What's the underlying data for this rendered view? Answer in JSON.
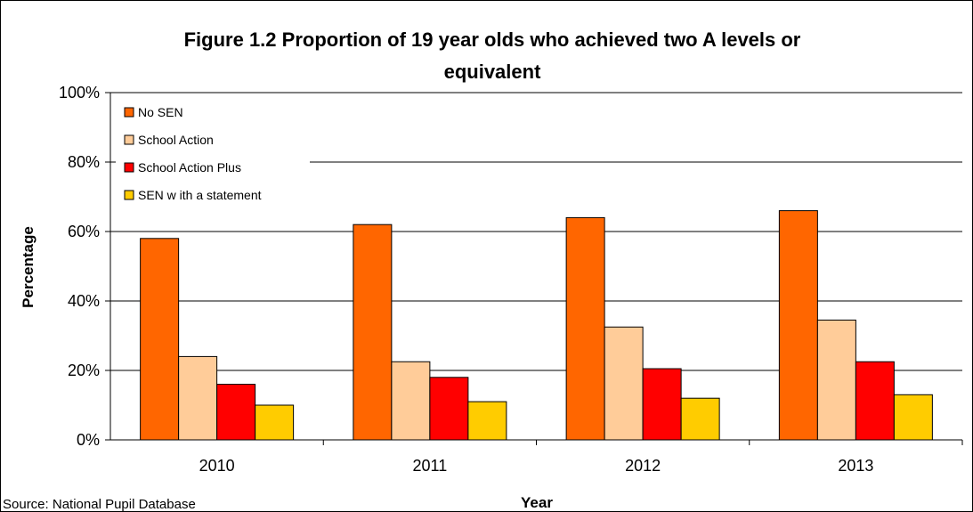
{
  "chart_data": {
    "type": "bar",
    "title": "Figure 1.2 Proportion of 19 year olds who achieved two A levels or equivalent",
    "title_lines": [
      "Figure 1.2 Proportion of 19 year olds who achieved two A levels or",
      "equivalent"
    ],
    "xlabel": "Year",
    "ylabel": "Percentage",
    "categories": [
      "2010",
      "2011",
      "2012",
      "2013"
    ],
    "ylim": [
      0,
      100
    ],
    "yticks": [
      0,
      20,
      40,
      60,
      80,
      100
    ],
    "ytick_labels": [
      "0%",
      "20%",
      "40%",
      "60%",
      "80%",
      "100%"
    ],
    "grid": true,
    "legend_position": "top-left",
    "series": [
      {
        "name": "No SEN",
        "color": "#FF6600",
        "values": [
          58,
          62,
          64,
          66
        ]
      },
      {
        "name": "School Action",
        "color": "#FFCC99",
        "values": [
          24,
          22.5,
          32.5,
          34.5
        ]
      },
      {
        "name": "School Action Plus",
        "color": "#FF0000",
        "values": [
          16,
          18,
          20.5,
          22.5
        ]
      },
      {
        "name": "SEN w ith a statement",
        "color": "#FFCC00",
        "values": [
          10,
          11,
          12,
          13
        ]
      }
    ]
  },
  "footer": {
    "source": "Source: National Pupil Database"
  }
}
